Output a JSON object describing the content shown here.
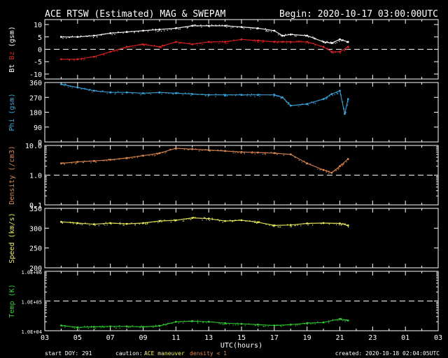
{
  "title": "ACE RTSW (Estimated) MAG & SWEPAM",
  "begin": "Begin: 2020-10-17 03:00:00UTC",
  "start_doy": "start DOY: 291",
  "caution_label": "caution:",
  "caution_maneuver": "ACE maneuver",
  "caution_density": "density < 1",
  "created": "created: 2020-10-18 02:04:05UTC",
  "xlabel": "UTC(hours)",
  "colors": {
    "bt": "#ffffff",
    "bz": "#dd2222",
    "phi": "#3aa9e0",
    "density": "#e08a50",
    "speed": "#f0f060",
    "temp": "#30d030",
    "caution_maneuver": "#f0f060",
    "caution_density": "#e08a50"
  },
  "chart_data": [
    {
      "type": "line",
      "panel": "mag",
      "ylabel_parts": [
        "Bt",
        "Bz",
        "(gsm)"
      ],
      "yticks": [
        "10",
        "5",
        "0",
        "-5",
        "-10"
      ],
      "ylim": [
        -12,
        12
      ],
      "xticks": [
        "03",
        "05",
        "07",
        "09",
        "11",
        "13",
        "15",
        "17",
        "19",
        "21",
        "23",
        "01",
        "03"
      ],
      "xlim": [
        3,
        27
      ],
      "reference_line": 0,
      "series": [
        {
          "name": "Bt",
          "x": [
            4,
            5,
            6,
            7,
            8,
            9,
            10,
            11,
            12,
            13,
            14,
            15,
            16,
            17,
            17.5,
            18,
            19,
            20,
            20.5,
            21,
            21.5
          ],
          "values": [
            5,
            5,
            5.5,
            6.5,
            7,
            7.5,
            8,
            8.5,
            9.5,
            9.5,
            9.5,
            9,
            8.5,
            7.5,
            5.5,
            6,
            5.5,
            3,
            2.5,
            4,
            3
          ]
        },
        {
          "name": "Bz",
          "x": [
            4,
            5,
            6,
            7,
            8,
            9,
            10,
            11,
            12,
            13,
            14,
            15,
            16,
            17,
            17.5,
            18,
            19,
            20,
            20.5,
            21,
            21.5
          ],
          "values": [
            -4,
            -4,
            -3,
            -1,
            1,
            2,
            1,
            3,
            2,
            3,
            3,
            4,
            3.5,
            3,
            3,
            3,
            3,
            1,
            -1,
            -1,
            1
          ]
        }
      ]
    },
    {
      "type": "scatter",
      "panel": "phi",
      "ylabel": "Phi (gsm)",
      "yticks": [
        "360",
        "270",
        "180",
        "90",
        "0"
      ],
      "ylim": [
        0,
        360
      ],
      "xlim": [
        3,
        27
      ],
      "series": [
        {
          "name": "Phi",
          "x": [
            4,
            5,
            6,
            7,
            8,
            9,
            10,
            11,
            12,
            13,
            14,
            15,
            16,
            17,
            17.5,
            18,
            19,
            20,
            20.5,
            21,
            21.3,
            21.5
          ],
          "values": [
            350,
            330,
            310,
            300,
            300,
            295,
            300,
            295,
            290,
            285,
            285,
            285,
            285,
            285,
            270,
            220,
            230,
            260,
            290,
            310,
            170,
            260
          ]
        }
      ]
    },
    {
      "type": "scatter",
      "panel": "density",
      "ylabel": "Density (/cm3)",
      "yscale": "log",
      "yticks": [
        "10.0",
        "1.0",
        "0.1"
      ],
      "ylim": [
        0.1,
        10
      ],
      "reference_line": 1.0,
      "xlim": [
        3,
        27
      ],
      "series": [
        {
          "name": "Density",
          "x": [
            4,
            5,
            6,
            7,
            8,
            9,
            10,
            11,
            12,
            13,
            14,
            15,
            16,
            17,
            18,
            19,
            20,
            20.5,
            21,
            21.5
          ],
          "values": [
            2.5,
            2.8,
            3,
            3.3,
            3.8,
            4.5,
            5.5,
            8,
            7.5,
            7,
            6.5,
            6,
            5.8,
            5.5,
            5,
            2.5,
            1.5,
            1.2,
            2,
            3.5
          ]
        }
      ]
    },
    {
      "type": "scatter",
      "panel": "speed",
      "ylabel": "Speed (km/s)",
      "yticks": [
        "350",
        "300",
        "250",
        "200"
      ],
      "ylim": [
        200,
        350
      ],
      "xlim": [
        3,
        27
      ],
      "series": [
        {
          "name": "Speed",
          "x": [
            4,
            5,
            6,
            7,
            8,
            9,
            10,
            11,
            12,
            13,
            14,
            15,
            16,
            17,
            18,
            19,
            20,
            21,
            21.5
          ],
          "values": [
            316,
            313,
            310,
            313,
            311,
            313,
            318,
            320,
            326,
            324,
            318,
            320,
            315,
            307,
            308,
            312,
            313,
            312,
            307
          ]
        }
      ]
    },
    {
      "type": "scatter",
      "panel": "temp",
      "ylabel": "Temp (K)",
      "yscale": "log",
      "yticks": [
        "1.0E+06",
        "1.0E+05",
        "1.0E+04"
      ],
      "ylim": [
        10000,
        1000000
      ],
      "reference_line": 100000,
      "xlabel": "UTC(hours)",
      "xlim": [
        3,
        27
      ],
      "series": [
        {
          "name": "Temp",
          "x": [
            4,
            5,
            6,
            7,
            8,
            9,
            10,
            11,
            12,
            13,
            14,
            15,
            16,
            17,
            18,
            19,
            20,
            21,
            21.5
          ],
          "values": [
            15000,
            13000,
            13500,
            14000,
            14000,
            13500,
            14500,
            20000,
            21000,
            20000,
            18000,
            17000,
            16000,
            15000,
            16000,
            18000,
            19000,
            25000,
            22000
          ]
        }
      ]
    }
  ]
}
